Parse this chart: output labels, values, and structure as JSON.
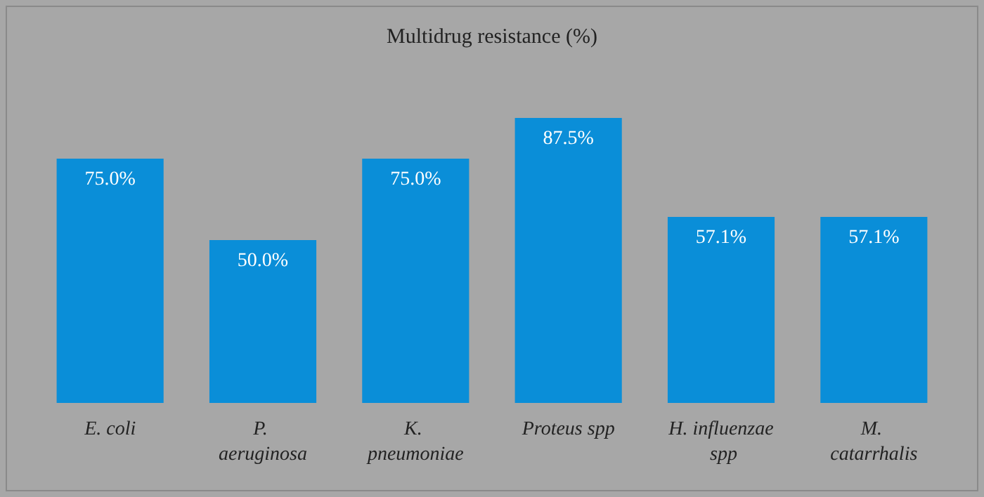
{
  "chart_data": {
    "type": "bar",
    "title": "Multidrug resistance (%)",
    "categories": [
      "E. coli",
      "P. aeruginosa",
      "K. pneumoniae",
      "Proteus spp",
      "H. influenzae spp",
      "M. catarrhalis"
    ],
    "values": [
      75.0,
      50.0,
      75.0,
      87.5,
      57.1,
      57.1
    ],
    "value_labels": [
      "75.0%",
      "50.0%",
      "75.0%",
      "87.5%",
      "57.1%",
      "57.1%"
    ],
    "color": "#0a8ed8"
  }
}
